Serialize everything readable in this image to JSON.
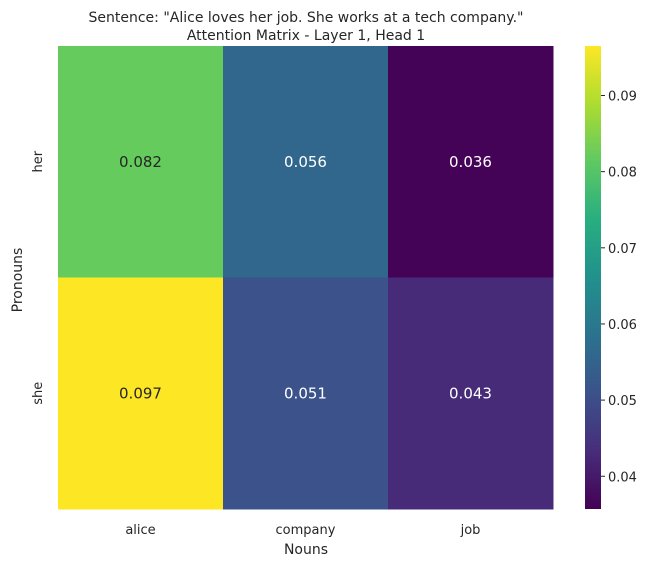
{
  "chart_data": {
    "type": "heatmap",
    "title": "Sentence: \"Alice loves her job. She works at a tech company.\"",
    "subtitle": "Attention Matrix - Layer 1, Head 1",
    "xlabel": "Nouns",
    "ylabel": "Pronouns",
    "x_categories": [
      "alice",
      "company",
      "job"
    ],
    "y_categories": [
      "her",
      "she"
    ],
    "values": [
      [
        0.082,
        0.056,
        0.036
      ],
      [
        0.097,
        0.051,
        0.043
      ]
    ],
    "annotations": [
      [
        "0.082",
        "0.056",
        "0.036"
      ],
      [
        "0.097",
        "0.051",
        "0.043"
      ]
    ],
    "colormap": "viridis",
    "colorbar": {
      "range": [
        0.0357,
        0.0965
      ],
      "ticks": [
        0.04,
        0.05,
        0.06,
        0.07,
        0.08,
        0.09
      ],
      "tick_labels": [
        "0.04",
        "0.05",
        "0.06",
        "0.07",
        "0.08",
        "0.09"
      ]
    },
    "grid": false,
    "legend": "colorbar-right"
  }
}
